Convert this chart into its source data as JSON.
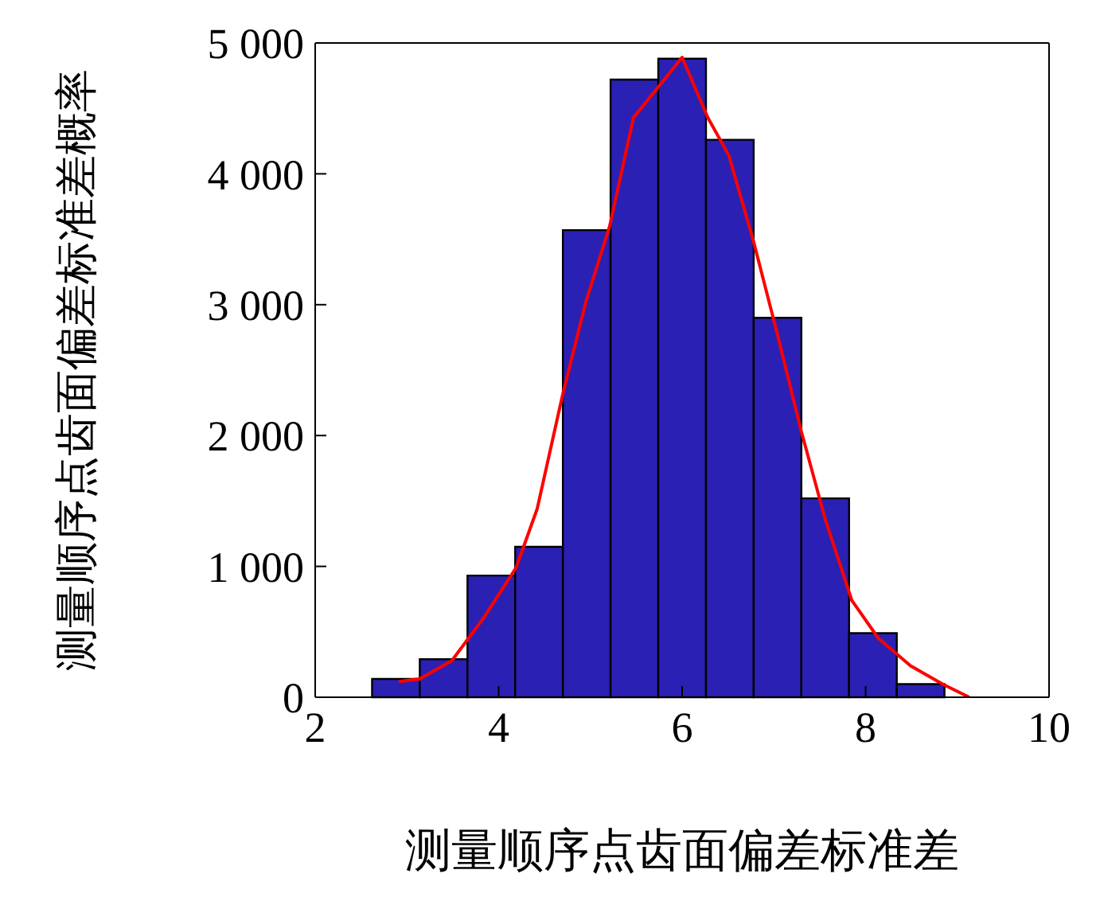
{
  "chart_data": {
    "type": "histogram",
    "xlabel": "测量顺序点齿面偏差标准差",
    "ylabel": "测量顺序点齿面偏差标准差概率",
    "bins": [
      2.62,
      3.14,
      3.66,
      4.18,
      4.7,
      5.22,
      5.74,
      6.26,
      6.78,
      7.3,
      7.82,
      8.34,
      8.86
    ],
    "values": [
      140,
      290,
      930,
      1150,
      3570,
      4720,
      4880,
      4260,
      2900,
      1520,
      490,
      100
    ],
    "color": "#2b20b4",
    "series": [
      {
        "type": "line",
        "color": "#ff0000",
        "x": [
          2.91,
          3.14,
          3.49,
          3.84,
          4.19,
          4.42,
          4.7,
          4.95,
          5.21,
          5.47,
          5.76,
          6.0,
          6.28,
          6.51,
          6.78,
          7.04,
          7.3,
          7.56,
          7.85,
          8.14,
          8.49,
          8.84,
          9.13
        ],
        "values": [
          120,
          140,
          280,
          610,
          990,
          1440,
          2320,
          3020,
          3600,
          4430,
          4680,
          4890,
          4430,
          4140,
          3480,
          2770,
          2030,
          1360,
          740,
          450,
          240,
          100,
          0
        ]
      }
    ],
    "xlim": [
      2,
      10
    ],
    "xticks": [
      2,
      4,
      6,
      8,
      10
    ],
    "ylim": [
      0,
      5000
    ],
    "yticks": [
      0,
      {
        "value": 1000,
        "label": "1 000"
      },
      {
        "value": 2000,
        "label": "2 000"
      },
      {
        "value": 3000,
        "label": "3 000"
      },
      {
        "value": 4000,
        "label": "4 000"
      },
      {
        "value": 5000,
        "label": "5 000"
      }
    ],
    "grid": false,
    "legend": false,
    "marker": "none",
    "line_style": "solid"
  }
}
